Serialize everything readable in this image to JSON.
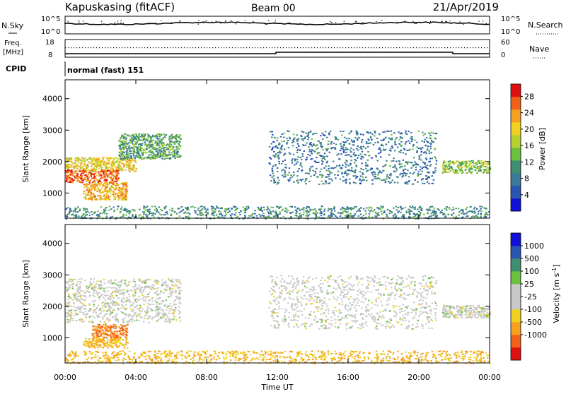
{
  "header": {
    "title": "Kapuskasing (fitACF)",
    "beam": "Beam 00",
    "date": "21/Apr/2019"
  },
  "noise_panel": {
    "left_label": "N.Sky",
    "right_label": "N.Search",
    "left_ticks": [
      "10^5",
      "10^0"
    ],
    "right_ticks": [
      "10^5",
      "10^0"
    ]
  },
  "freq_panel": {
    "left_label": "Freq.",
    "left_unit": "[MHz]",
    "left_ticks": [
      "18",
      "8"
    ],
    "right_label": "Nave",
    "right_ticks": [
      "60",
      "0"
    ],
    "cpid_label": "CPID",
    "cpid_text": "normal (fast) 151"
  },
  "colors": {
    "power": [
      "#1010d8",
      "#2a55b0",
      "#3a7a9a",
      "#3f8e70",
      "#6cc040",
      "#b8d030",
      "#f0d020",
      "#f5a020",
      "#f06018",
      "#e01010"
    ],
    "velocity": [
      "#e01010",
      "#f06018",
      "#f5a020",
      "#f0d020",
      "#c8c8c8",
      "#c8c8c8",
      "#6cc040",
      "#3f8e70",
      "#2a55b0",
      "#1010d8"
    ]
  },
  "chart_data": [
    {
      "type": "heatmap",
      "name": "power",
      "ylabel": "Slant Range [km]",
      "yticks": [
        1000,
        2000,
        3000,
        4000
      ],
      "ylim": [
        200,
        4600
      ],
      "colorbar_label": "Power [dB]",
      "colorbar_ticks": [
        4,
        8,
        12,
        16,
        20,
        24,
        28
      ],
      "colorbar_range": [
        0,
        31
      ],
      "features": [
        {
          "t0": 0.0,
          "t1": 4.0,
          "r0": 1700,
          "r1": 2150,
          "value": 20
        },
        {
          "t0": 0.0,
          "t1": 3.0,
          "r0": 1350,
          "r1": 1750,
          "value": 26
        },
        {
          "t0": 1.0,
          "t1": 3.5,
          "r0": 800,
          "r1": 1350,
          "value": 22
        },
        {
          "t0": 3.0,
          "t1": 6.5,
          "r0": 2100,
          "r1": 2900,
          "value": 12
        },
        {
          "t0": 11.5,
          "t1": 21.0,
          "r0": 1300,
          "r1": 3000,
          "value": 8
        },
        {
          "t0": 21.3,
          "t1": 24.0,
          "r0": 1650,
          "r1": 2050,
          "value": 15
        },
        {
          "t0": 0.0,
          "t1": 24.0,
          "r0": 200,
          "r1": 600,
          "value": 10
        }
      ]
    },
    {
      "type": "heatmap",
      "name": "velocity",
      "ylabel": "Slant Range [km]",
      "yticks": [
        1000,
        2000,
        3000,
        4000
      ],
      "ylim": [
        200,
        4600
      ],
      "colorbar_label": "Velocity [m s^-1]",
      "colorbar_ticks": [
        "1000",
        "500",
        "100",
        "25",
        "-25",
        "-100",
        "-500",
        "-1000"
      ],
      "features": [
        {
          "t0": 0.0,
          "t1": 6.5,
          "r0": 1500,
          "r1": 2900,
          "value": 0
        },
        {
          "t0": 1.5,
          "t1": 3.5,
          "r0": 1000,
          "r1": 1450,
          "value": -500
        },
        {
          "t0": 1.0,
          "t1": 3.5,
          "r0": 700,
          "r1": 1000,
          "value": -100
        },
        {
          "t0": 11.5,
          "t1": 21.0,
          "r0": 1300,
          "r1": 3000,
          "value": 0
        },
        {
          "t0": 21.3,
          "t1": 24.0,
          "r0": 1650,
          "r1": 2050,
          "value": 0
        },
        {
          "t0": 0.0,
          "t1": 24.0,
          "r0": 200,
          "r1": 600,
          "value": -100
        }
      ]
    }
  ],
  "time_axis": {
    "label": "Time UT",
    "ticks": [
      "00:00",
      "04:00",
      "08:00",
      "12:00",
      "16:00",
      "20:00",
      "00:00"
    ]
  }
}
